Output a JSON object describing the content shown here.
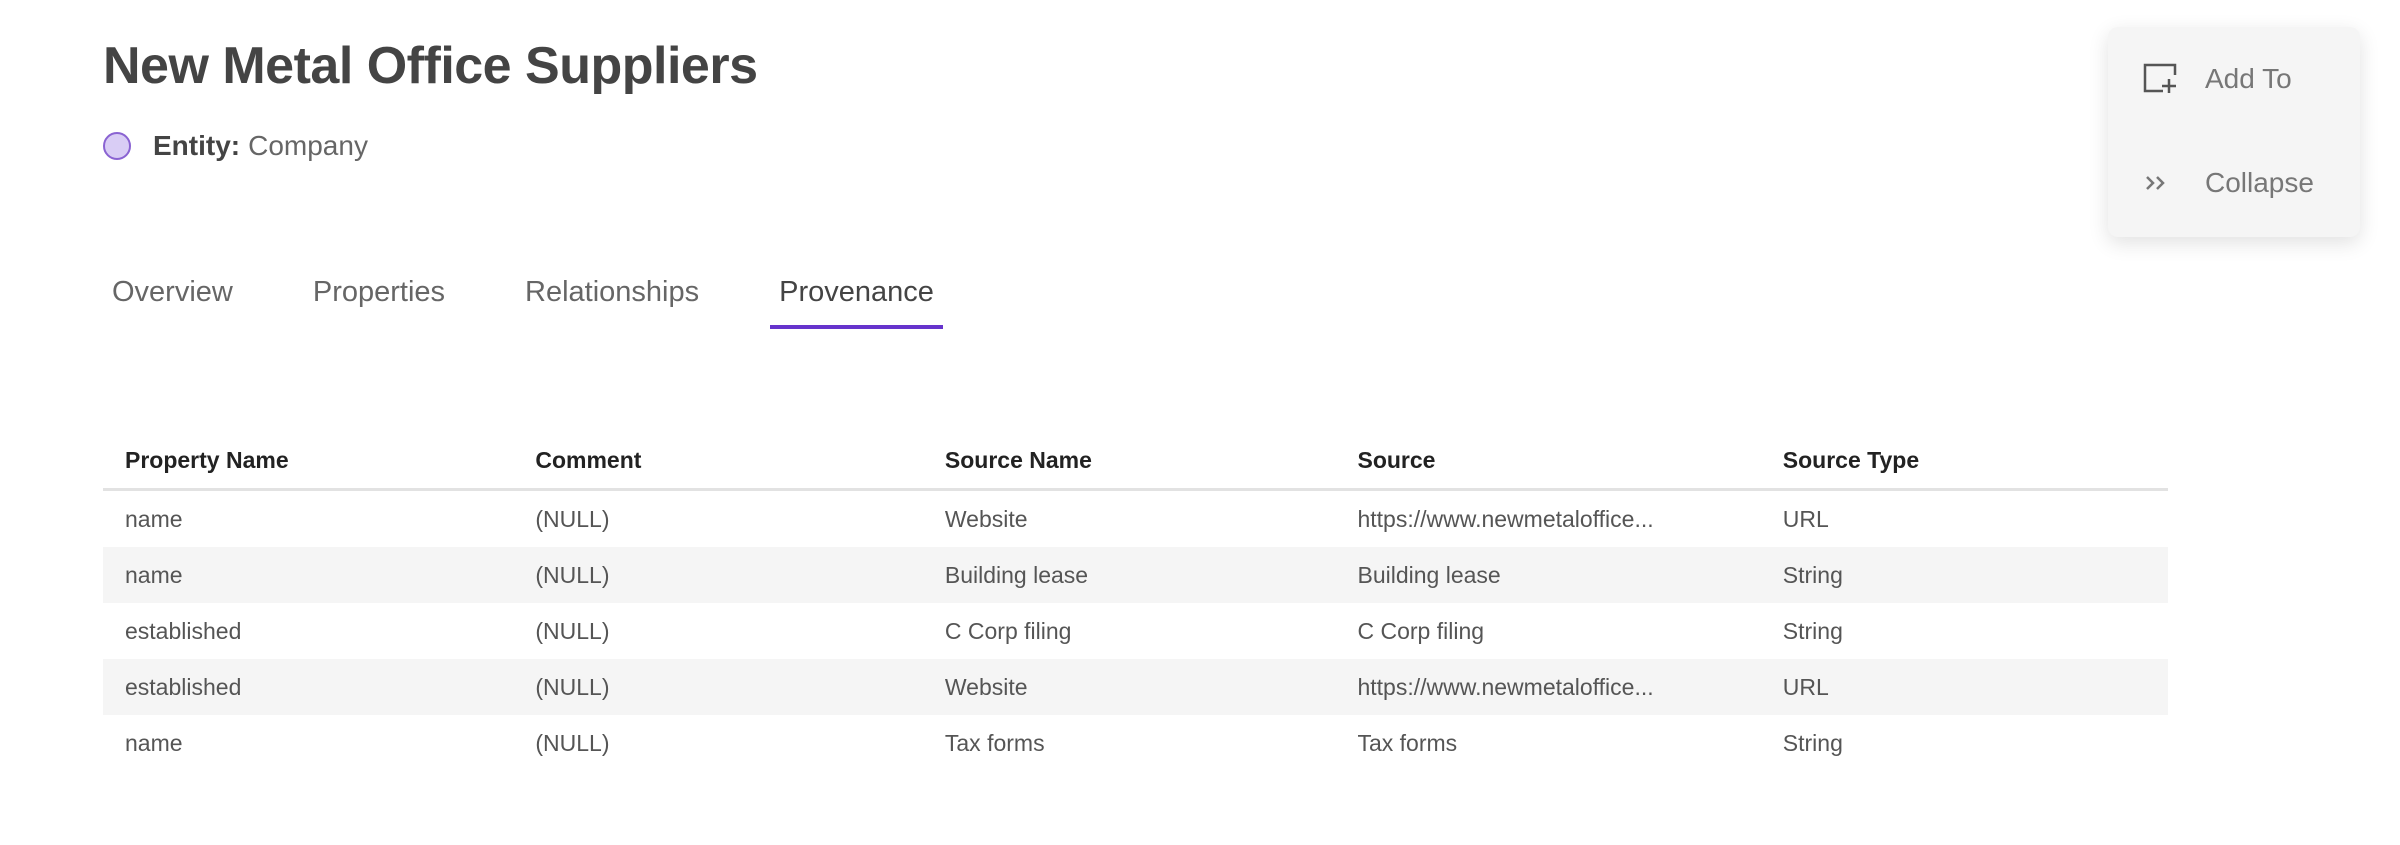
{
  "header": {
    "title": "New Metal Office Suppliers",
    "entity_label": "Entity:",
    "entity_value": "Company"
  },
  "tabs": [
    {
      "label": "Overview",
      "active": false
    },
    {
      "label": "Properties",
      "active": false
    },
    {
      "label": "Relationships",
      "active": false
    },
    {
      "label": "Provenance",
      "active": true
    }
  ],
  "colors": {
    "accent": "#6633cc",
    "entity_dot": "#d9cdf5"
  },
  "table": {
    "columns": [
      "Property Name",
      "Comment",
      "Source Name",
      "Source",
      "Source Type"
    ],
    "rows": [
      [
        "name",
        "(NULL)",
        "Website",
        "https://www.newmetaloffice...",
        "URL"
      ],
      [
        "name",
        "(NULL)",
        "Building lease",
        "Building lease",
        "String"
      ],
      [
        "established",
        "(NULL)",
        "C Corp filing",
        "C Corp filing",
        "String"
      ],
      [
        "established",
        "(NULL)",
        "Website",
        "https://www.newmetaloffice...",
        "URL"
      ],
      [
        "name",
        "(NULL)",
        "Tax forms",
        "Tax forms",
        "String"
      ]
    ]
  },
  "actions": {
    "add_to": "Add To",
    "collapse": "Collapse",
    "add_to_icon": "add-to-collection-icon",
    "collapse_icon": "double-chevron-right-icon"
  }
}
